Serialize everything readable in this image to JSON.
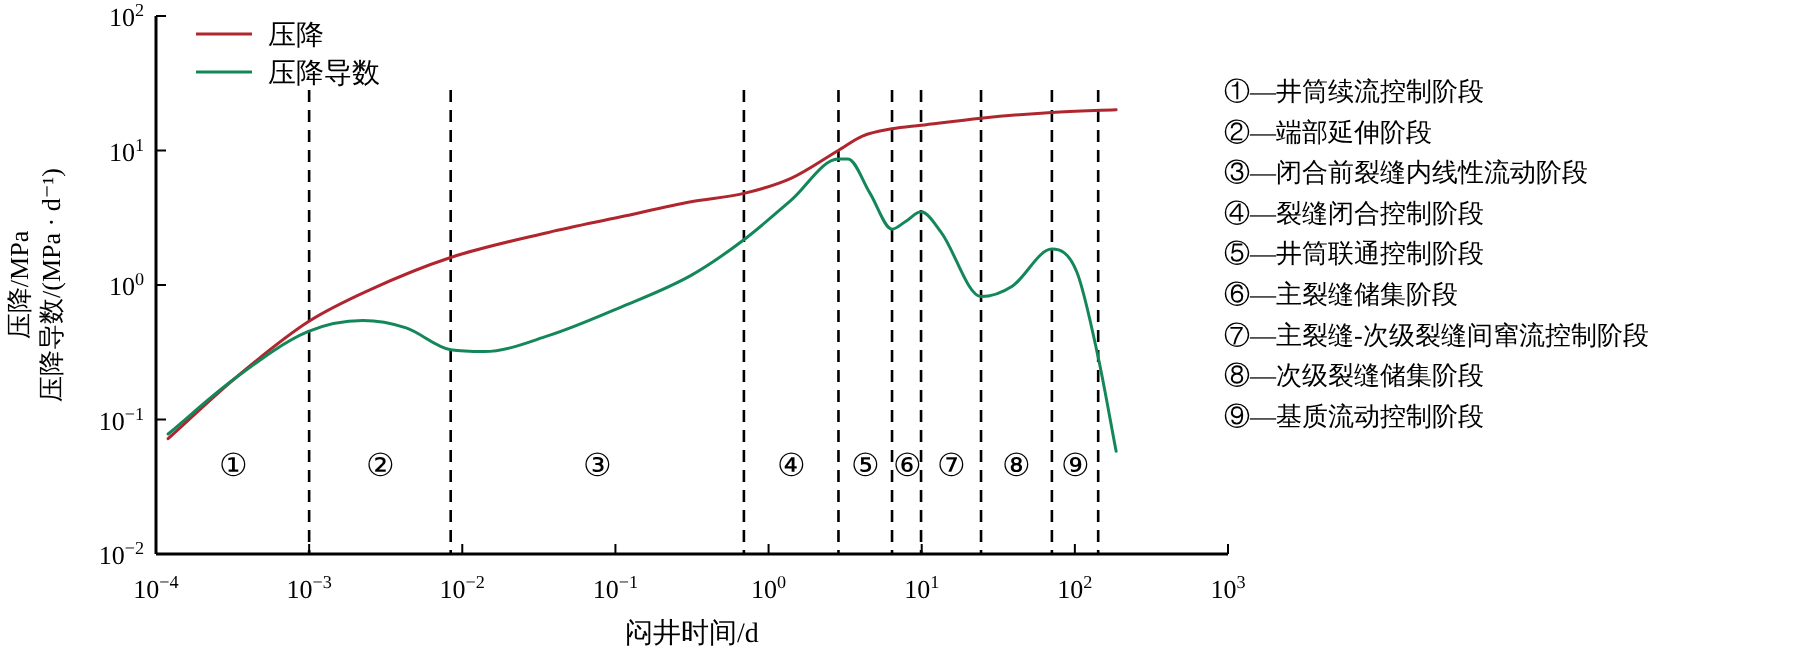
{
  "chart_data": {
    "type": "line",
    "xlabel": "闷井时间/d",
    "ylabel": "压降/MPa\n压降导数/(MPa · d⁻¹)",
    "log": "xy",
    "grid": false,
    "legend": "top left",
    "line_style": "solid",
    "marker": "none",
    "xlim": [
      0.0001,
      1000
    ],
    "ylim": [
      0.01,
      100
    ],
    "xticks": [
      {
        "value": 0.0001,
        "label": "10$^{−4}$"
      },
      {
        "value": 0.001,
        "label": "10$^{−3}$"
      },
      {
        "value": 0.01,
        "label": "10$^{−2}$"
      },
      {
        "value": 0.1,
        "label": "10$^{−1}$"
      },
      {
        "value": 1,
        "label": "10$^{0}$"
      },
      {
        "value": 10,
        "label": "10$^{1}$"
      },
      {
        "value": 100,
        "label": "10$^{2}$"
      },
      {
        "value": 1000,
        "label": "10$^{3}$"
      }
    ],
    "yticks": [
      {
        "value": 0.01,
        "label": "10$^{−2}$"
      },
      {
        "value": 0.1,
        "label": "10$^{−1}$"
      },
      {
        "value": 1,
        "label": "10$^{0}$"
      },
      {
        "value": 10,
        "label": "10$^{1}$"
      },
      {
        "value": 100,
        "label": "10$^{2}$"
      }
    ],
    "series": [
      {
        "name": "压降",
        "color": "#b0262f",
        "x": [
          0.00012,
          0.000324,
          0.00098,
          0.00249,
          0.0084,
          0.0365,
          0.107,
          0.312,
          0.69,
          1.4,
          2.85,
          4.1,
          6.4,
          9.9,
          24.4,
          70.7,
          186
        ],
        "values": [
          0.072,
          0.2,
          0.53,
          0.92,
          1.6,
          2.46,
          3.2,
          4.16,
          4.8,
          6.2,
          10,
          12.8,
          14.5,
          15.4,
          17.4,
          19.2,
          20.1
        ]
      },
      {
        "name": "压降导数",
        "color": "#14875a",
        "x": [
          0.00012,
          0.000324,
          0.00098,
          0.00224,
          0.0043,
          0.0084,
          0.0139,
          0.0365,
          0.107,
          0.312,
          0.69,
          1.4,
          2.85,
          3.3,
          4.6,
          6.4,
          7.8,
          9.9,
          13.4,
          24.4,
          39,
          70.7,
          103,
          142,
          186
        ],
        "values": [
          0.078,
          0.2,
          0.45,
          0.545,
          0.48,
          0.33,
          0.32,
          0.42,
          0.68,
          1.18,
          2.17,
          4.26,
          8.65,
          8.65,
          4.8,
          2.6,
          2.95,
          3.5,
          2.46,
          0.82,
          0.98,
          1.85,
          1.25,
          0.29,
          0.058
        ]
      }
    ],
    "ref_lines": [
      {
        "axis": "x",
        "value": 0.001,
        "color": "#000000",
        "line_style": "dashed"
      },
      {
        "axis": "x",
        "value": 0.0084,
        "color": "#000000",
        "line_style": "dashed"
      },
      {
        "axis": "x",
        "value": 0.69,
        "color": "#000000",
        "line_style": "dashed"
      },
      {
        "axis": "x",
        "value": 2.86,
        "color": "#000000",
        "line_style": "dashed"
      },
      {
        "axis": "x",
        "value": 6.4,
        "color": "#000000",
        "line_style": "dashed"
      },
      {
        "axis": "x",
        "value": 9.9,
        "color": "#000000",
        "line_style": "dashed"
      },
      {
        "axis": "x",
        "value": 24.4,
        "color": "#000000",
        "line_style": "dashed"
      },
      {
        "axis": "x",
        "value": 70.8,
        "color": "#000000",
        "line_style": "dashed"
      },
      {
        "axis": "x",
        "value": 142,
        "color": "#000000",
        "line_style": "dashed"
      }
    ],
    "annotations": [
      "①",
      "②",
      "③",
      "④",
      "⑤",
      "⑥",
      "⑦",
      "⑧",
      "⑨",
      "①—井筒续流控制阶段",
      "②—端部延伸阶段",
      "③—闭合前裂缝内线性流动阶段",
      "④—裂缝闭合控制阶段",
      "⑤—井筒联通控制阶段",
      "⑥—主裂缝储集阶段",
      "⑦—主裂缝-次级裂缝间窜流控制阶段",
      "⑧—次级裂缝储集阶段",
      "⑨—基质流动控制阶段"
    ]
  }
}
